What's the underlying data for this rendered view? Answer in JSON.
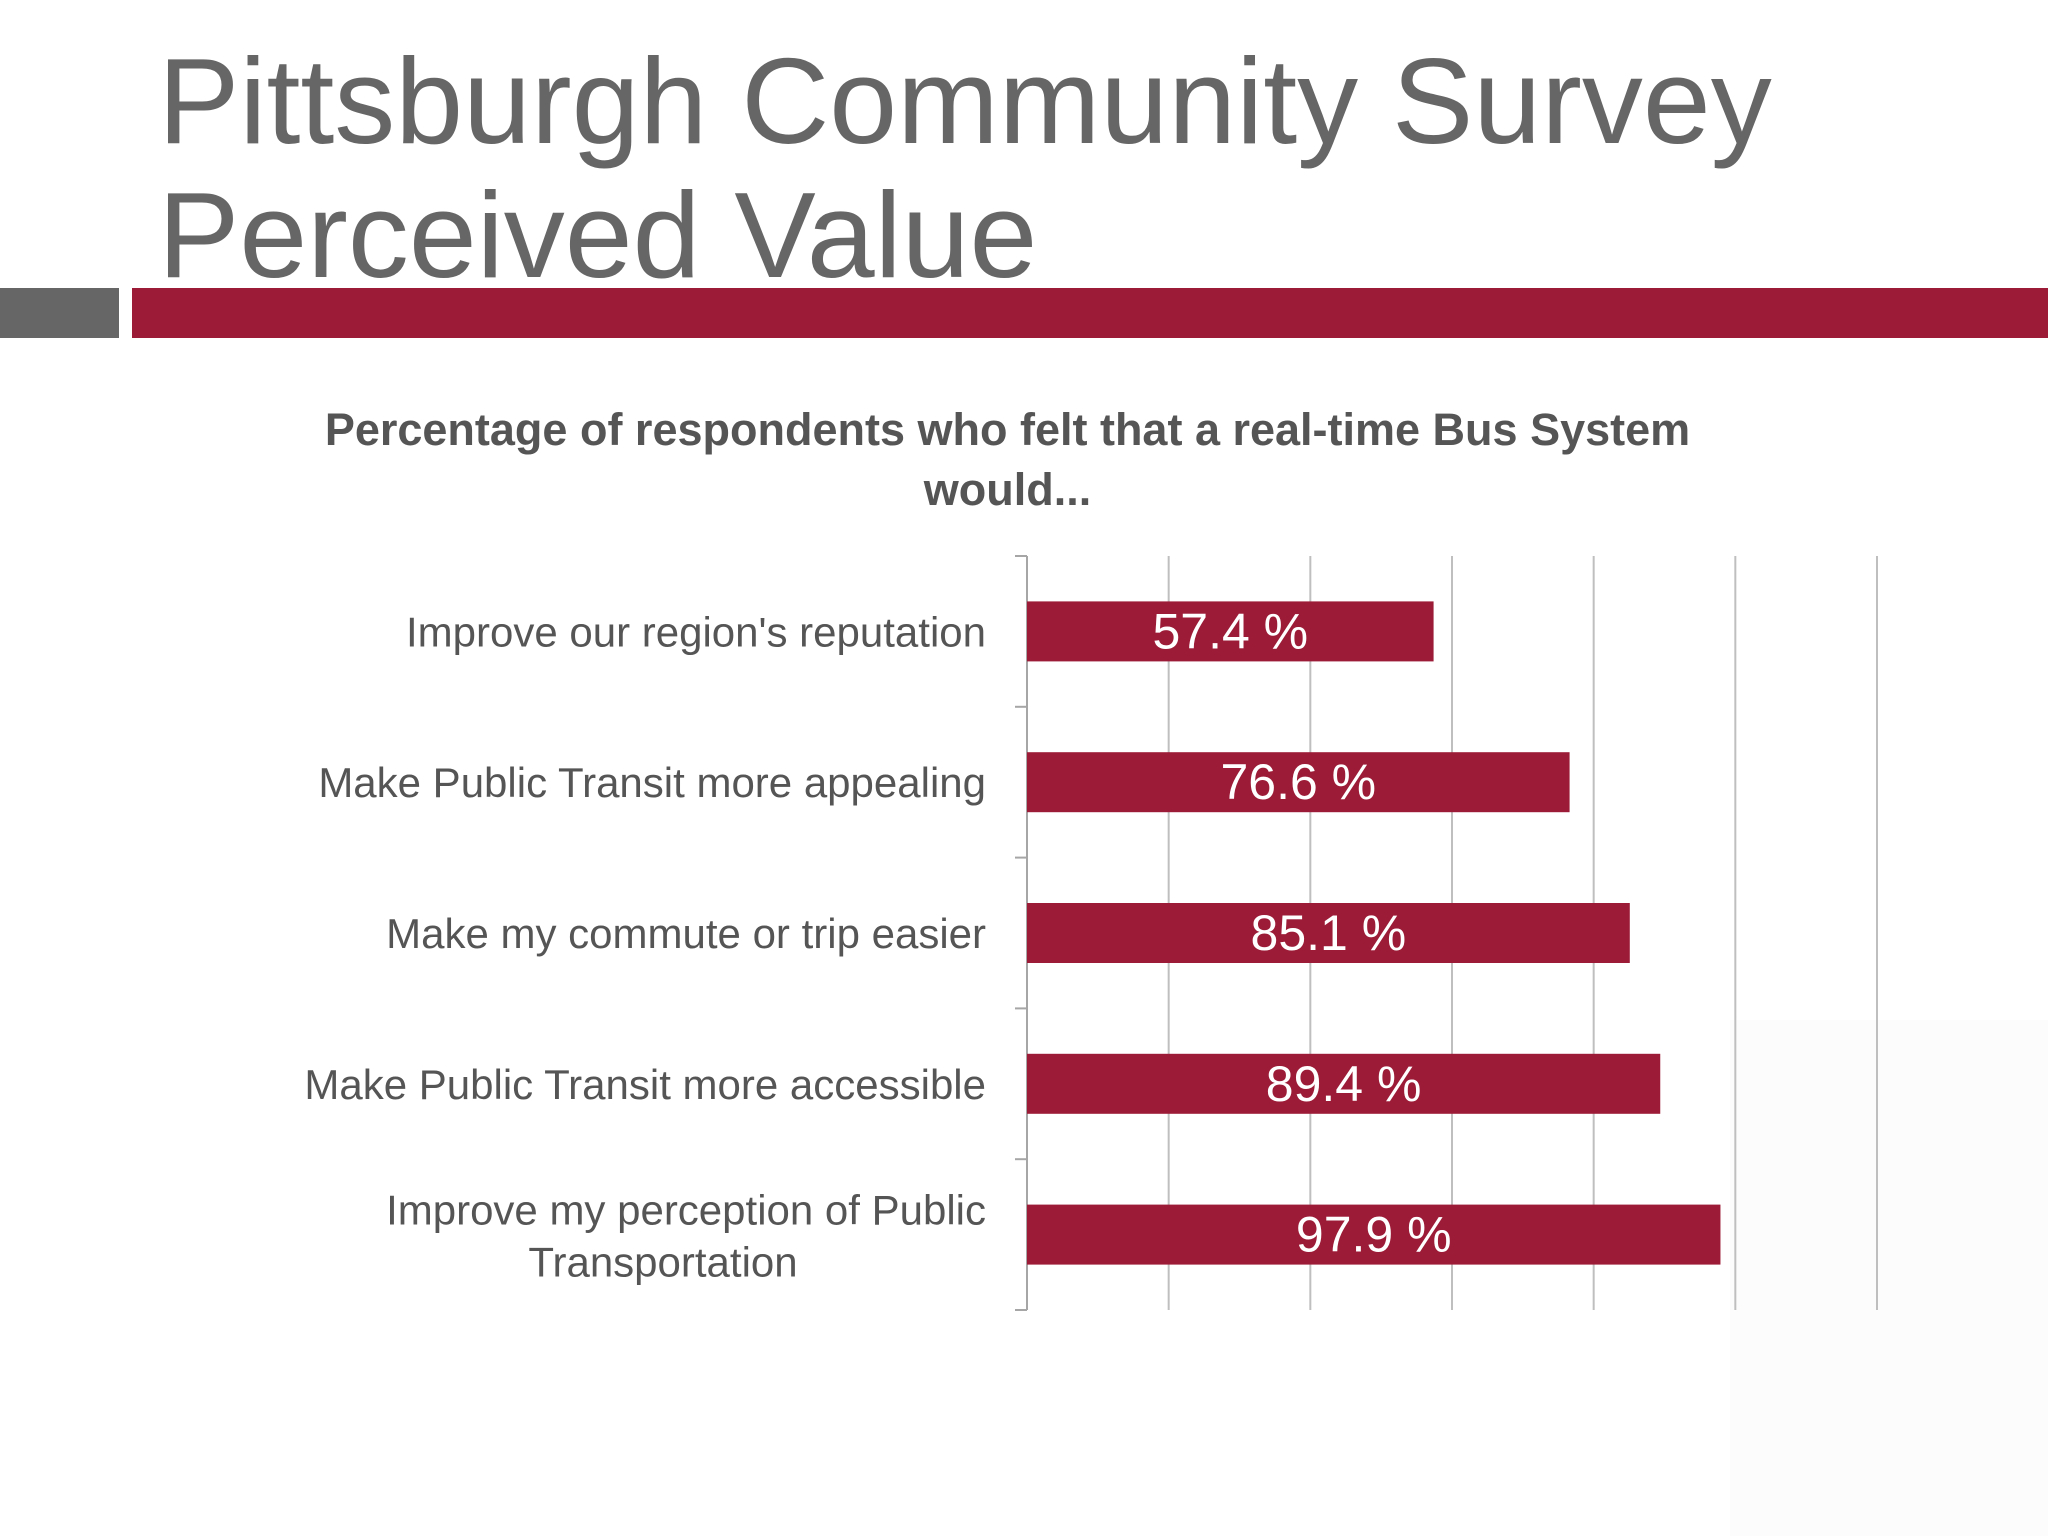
{
  "slide": {
    "title_lines": [
      "Pittsburgh Community Survey",
      "Perceived Value"
    ]
  },
  "colors": {
    "accent": "#9c1b37",
    "title_text": "#666666",
    "rule_grey": "#666666",
    "label_text": "#555555",
    "gridline": "#bfbfbf",
    "bar_label": "#ffffff"
  },
  "chart_data": {
    "type": "bar",
    "orientation": "horizontal",
    "title": "Percentage of respondents who felt that a real-time Bus System would...",
    "categories": [
      "Improve our region's reputation",
      "Make Public Transit more appealing",
      "Make my commute or trip easier",
      "Make Public Transit more accessible",
      "Improve my perception of Public Transportation"
    ],
    "category_label_lines": [
      [
        "Improve our region's reputation"
      ],
      [
        "Make Public Transit more appealing"
      ],
      [
        "Make my commute or trip easier"
      ],
      [
        "Make Public Transit more accessible"
      ],
      [
        "Improve my perception of Public",
        "Transportation"
      ]
    ],
    "values": [
      57.4,
      76.6,
      85.1,
      89.4,
      97.9
    ],
    "data_labels": [
      "57.4 %",
      "76.6 %",
      "85.1 %",
      "89.4 %",
      "97.9 %"
    ],
    "xlim": [
      0,
      120
    ],
    "x_grid_step": 20,
    "grid": true,
    "x_tick_labels_shown": false,
    "legend": "none"
  }
}
